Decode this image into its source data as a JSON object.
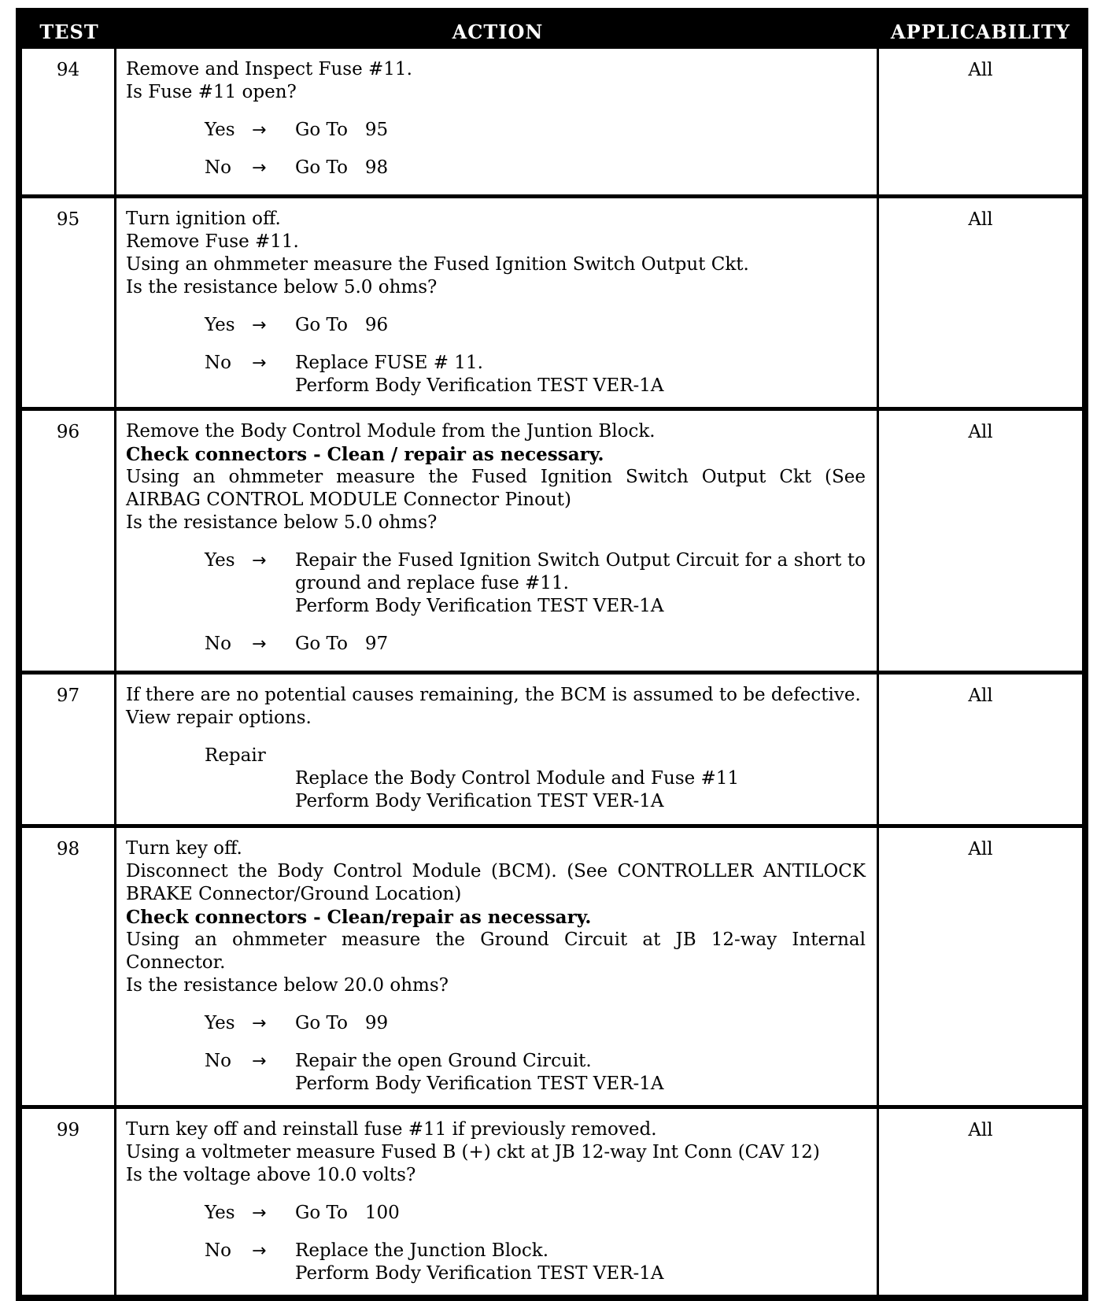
{
  "header": {
    "test": "TEST",
    "action": "ACTION",
    "applicability": "APPLICABILITY"
  },
  "colors": {
    "header_bg": "#000000",
    "header_text": "#ffffff",
    "body_text": "#000000",
    "page_bg": "#ffffff"
  },
  "rows": [
    {
      "test": "94",
      "applicability": "All",
      "action_lines": [
        {
          "text": "Remove and Inspect Fuse #11.",
          "bold": false
        },
        {
          "text": "Is Fuse #11 open?",
          "bold": false
        }
      ],
      "decisions": [
        {
          "label": "Yes",
          "arrow": "→",
          "results": [
            "Go To   95"
          ]
        },
        {
          "label": "No",
          "arrow": "→",
          "results": [
            "Go To   98"
          ]
        }
      ]
    },
    {
      "test": "95",
      "applicability": "All",
      "action_lines": [
        {
          "text": "Turn ignition off.",
          "bold": false
        },
        {
          "text": "Remove Fuse #11.",
          "bold": false
        },
        {
          "text": "Using an ohmmeter measure the Fused Ignition Switch Output Ckt.",
          "bold": false
        },
        {
          "text": "Is the resistance below 5.0 ohms?",
          "bold": false
        }
      ],
      "decisions": [
        {
          "label": "Yes",
          "arrow": "→",
          "results": [
            "Go To   96"
          ]
        },
        {
          "label": "No",
          "arrow": "→",
          "results": [
            "Replace FUSE # 11.",
            "Perform Body Verification TEST VER-1A"
          ]
        }
      ]
    },
    {
      "test": "96",
      "applicability": "All",
      "action_lines": [
        {
          "text": "Remove the Body Control Module from the Juntion Block.",
          "bold": false
        },
        {
          "text": "Check connectors - Clean / repair as necessary.",
          "bold": true
        },
        {
          "text": "Using an ohmmeter measure the Fused Ignition Switch Output Ckt (See AIRBAG CONTROL MODULE Connector Pinout)",
          "bold": false
        },
        {
          "text": "Is the resistance below 5.0 ohms?",
          "bold": false
        }
      ],
      "decisions": [
        {
          "label": "Yes",
          "arrow": "→",
          "results": [
            "Repair the Fused Ignition Switch Output Circuit for a short to ground and replace fuse #11.",
            "Perform Body Verification TEST VER-1A"
          ]
        },
        {
          "label": "No",
          "arrow": "→",
          "results": [
            "Go To   97"
          ]
        }
      ]
    },
    {
      "test": "97",
      "applicability": "All",
      "action_lines": [
        {
          "text": "If there are no potential causes remaining, the BCM is assumed to be defective.",
          "bold": false
        },
        {
          "text": "View repair options.",
          "bold": false
        }
      ],
      "decisions": [
        {
          "label": "Repair",
          "arrow": "",
          "results": [
            "Replace the Body Control Module and Fuse #11",
            "Perform Body Verification TEST VER-1A"
          ]
        }
      ]
    },
    {
      "test": "98",
      "applicability": "All",
      "action_lines": [
        {
          "text": "Turn key off.",
          "bold": false
        },
        {
          "text": "Disconnect the Body Control Module (BCM). (See CONTROLLER ANTILOCK BRAKE Connector/Ground Location)",
          "bold": false
        },
        {
          "text": "Check connectors - Clean/repair as necessary.",
          "bold": true
        },
        {
          "text": "Using an ohmmeter measure the Ground Circuit at JB 12-way Internal Connector.",
          "bold": false
        },
        {
          "text": "Is the resistance below 20.0 ohms?",
          "bold": false
        }
      ],
      "decisions": [
        {
          "label": "Yes",
          "arrow": "→",
          "results": [
            "Go To   99"
          ]
        },
        {
          "label": "No",
          "arrow": "→",
          "results": [
            "Repair the open Ground Circuit.",
            "Perform Body Verification TEST VER-1A"
          ]
        }
      ]
    },
    {
      "test": "99",
      "applicability": "All",
      "action_lines": [
        {
          "text": "Turn key off and reinstall fuse #11 if previously removed.",
          "bold": false
        },
        {
          "text": "Using a voltmeter measure Fused B (+) ckt at JB 12-way Int Conn (CAV 12)",
          "bold": false
        },
        {
          "text": "Is the voltage above 10.0 volts?",
          "bold": false
        }
      ],
      "decisions": [
        {
          "label": "Yes",
          "arrow": "→",
          "results": [
            "Go To   100"
          ]
        },
        {
          "label": "No",
          "arrow": "→",
          "results": [
            "Replace the Junction Block.",
            "Perform Body Verification TEST VER-1A"
          ]
        }
      ]
    }
  ]
}
